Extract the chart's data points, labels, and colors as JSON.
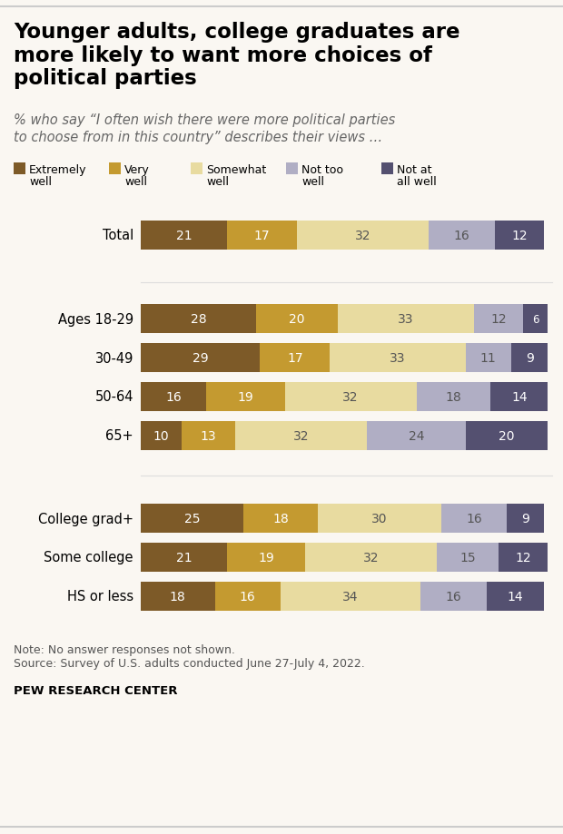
{
  "title": "Younger adults, college graduates are\nmore likely to want more choices of\npolitical parties",
  "subtitle": "% who say “I often wish there were more political parties\nto choose from in this country” describes their views …",
  "categories": [
    "Total",
    "Ages 18-29",
    "30-49",
    "50-64",
    "65+",
    "College grad+",
    "Some college",
    "HS or less"
  ],
  "data": {
    "Extremely well": [
      21,
      28,
      29,
      16,
      10,
      25,
      21,
      18
    ],
    "Very well": [
      17,
      20,
      17,
      19,
      13,
      18,
      19,
      16
    ],
    "Somewhat well": [
      32,
      33,
      33,
      32,
      32,
      30,
      32,
      34
    ],
    "Not too well": [
      16,
      12,
      11,
      18,
      24,
      16,
      15,
      16
    ],
    "Not at all well": [
      12,
      6,
      9,
      14,
      20,
      9,
      12,
      14
    ]
  },
  "colors": {
    "Extremely well": "#7d5a28",
    "Very well": "#c49a30",
    "Somewhat well": "#e8dba0",
    "Not too well": "#b0aec4",
    "Not at all well": "#545070"
  },
  "series_keys": [
    "Extremely well",
    "Very well",
    "Somewhat well",
    "Not too well",
    "Not at all well"
  ],
  "legend_line1": [
    "Extremely",
    "Very",
    "Somewhat",
    "Not too",
    "Not at"
  ],
  "legend_line2": [
    "well",
    "well",
    "well",
    "well",
    "all well"
  ],
  "note_line1": "Note: No answer responses not shown.",
  "note_line2": "Source: Survey of U.S. adults conducted June 27-July 4, 2022.",
  "source_bold": "PEW RESEARCH CENTER",
  "background_color": "#faf7f2"
}
